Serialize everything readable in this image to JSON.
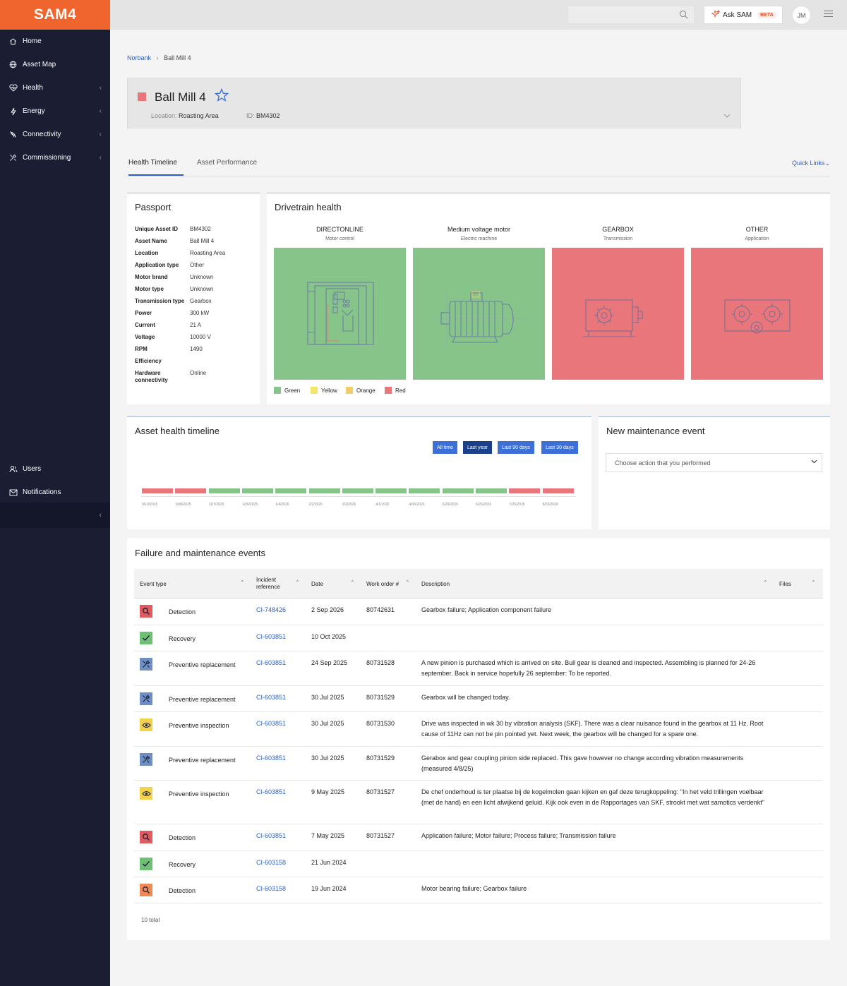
{
  "app": {
    "logo": "SAM4"
  },
  "sidebar": {
    "items": [
      {
        "label": "Home",
        "icon": "home-icon"
      },
      {
        "label": "Asset Map",
        "icon": "globe-icon"
      },
      {
        "label": "Health",
        "icon": "heart-icon"
      },
      {
        "label": "Energy",
        "icon": "bolt-icon"
      },
      {
        "label": "Connectivity",
        "icon": "connectivity-icon"
      },
      {
        "label": "Commissioning",
        "icon": "tools-icon"
      }
    ],
    "bottom_items": [
      {
        "label": "Users",
        "icon": "users-icon"
      },
      {
        "label": "Notifications",
        "icon": "mail-icon"
      }
    ]
  },
  "topbar": {
    "search_placeholder": "",
    "ask_label": "Ask SAM",
    "beta": "BETA",
    "avatar_initials": "JM"
  },
  "breadcrumb": {
    "root": "Norbank",
    "separator": "›",
    "current": "Ball Mill 4"
  },
  "asset": {
    "title": "Ball Mill 4",
    "location_label": "Location:",
    "location": "Roasting Area",
    "id_label": "ID:",
    "id": "BM4302",
    "status_color": "#e8767a"
  },
  "tabs": {
    "health": "Health Timeline",
    "performance": "Asset Performance",
    "quick_links": "Quick Links⌄"
  },
  "passport": {
    "title": "Passport",
    "rows": [
      {
        "k": "Unique Asset ID",
        "v": "BM4302"
      },
      {
        "k": "Asset Name",
        "v": "Ball Mill 4"
      },
      {
        "k": "Location",
        "v": "Roasting Area"
      },
      {
        "k": "Application type",
        "v": "Other"
      },
      {
        "k": "Motor brand",
        "v": "Unknown"
      },
      {
        "k": "Motor type",
        "v": "Unknown"
      },
      {
        "k": "Transmission type",
        "v": "Gearbox"
      },
      {
        "k": "Power",
        "v": "300 kW"
      },
      {
        "k": "Current",
        "v": "21 A"
      },
      {
        "k": "Voltage",
        "v": "10000 V"
      },
      {
        "k": "RPM",
        "v": "1490"
      },
      {
        "k": "Efficiency",
        "v": ""
      },
      {
        "k": "Hardware connectivity",
        "v": "Online"
      }
    ]
  },
  "drivetrain": {
    "title": "Drivetrain health",
    "components": [
      {
        "name": "DIRECTONLINE",
        "sub": "Motor control",
        "status": "Green"
      },
      {
        "name": "Medium voltage motor",
        "sub": "Electric machine",
        "status": "Green"
      },
      {
        "name": "GEARBOX",
        "sub": "Transmission",
        "status": "Red"
      },
      {
        "name": "OTHER",
        "sub": "Application",
        "status": "Red"
      }
    ],
    "legend": [
      {
        "label": "Green",
        "color": "#86c48a"
      },
      {
        "label": "Yellow",
        "color": "#f2e76b"
      },
      {
        "label": "Orange",
        "color": "#f3cc6b"
      },
      {
        "label": "Red",
        "color": "#e8767a"
      }
    ]
  },
  "timeline": {
    "title": "Asset health timeline",
    "ranges": [
      "All time",
      "Last year",
      "Last 90 days",
      "Last 30 days"
    ],
    "active_range": "Last year",
    "segments": [
      "Red",
      "Red",
      "Green",
      "Green",
      "Green",
      "Green",
      "Green",
      "Green",
      "Green",
      "Green",
      "Green",
      "Red",
      "Red"
    ],
    "dates": [
      "9/10/2025",
      "10/8/2025",
      "11/7/2025",
      "12/6/2025",
      "1/4/2026",
      "2/2/2026",
      "3/3/2026",
      "4/1/2026",
      "4/30/2026",
      "5/29/2026",
      "6/26/2026",
      "7/25/2026",
      "8/23/2026"
    ]
  },
  "new_maintenance": {
    "title": "New maintenance event",
    "select_placeholder": "Choose action that you performed"
  },
  "events": {
    "title": "Failure and maintenance events",
    "columns": {
      "type": "Event type",
      "incident_1": "Incident",
      "incident_2": "reference",
      "date": "Date",
      "wo": "Work order #",
      "desc": "Description",
      "files": "Files"
    },
    "rows": [
      {
        "type": "Detection",
        "kind": "detection-red",
        "ref": "CI-748426",
        "date": "2 Sep 2026",
        "wo": "80742631",
        "desc": "Gearbox failure; Application component failure"
      },
      {
        "type": "Recovery",
        "kind": "recovery",
        "ref": "CI-603851",
        "date": "10 Oct 2025",
        "wo": "",
        "desc": ""
      },
      {
        "type": "Preventive replacement",
        "kind": "replacement",
        "ref": "CI-603851",
        "date": "24 Sep 2025",
        "wo": "80731528",
        "desc": "A new pinion is purchased which is arrived on site. Bull gear is cleaned and inspected. Assembling is planned for 24-26 september. Back in service hopefully 26 september: To be reported."
      },
      {
        "type": "Preventive replacement",
        "kind": "replacement",
        "ref": "CI-603851",
        "date": "30 Jul 2025",
        "wo": "80731529",
        "desc": "Gearbox will be changed today."
      },
      {
        "type": "Preventive inspection",
        "kind": "inspection",
        "ref": "CI-603851",
        "date": "30 Jul 2025",
        "wo": "80731530",
        "desc": "Drive was inspected in wk 30 by vibration analysis (SKF). There was a clear nuisance found in the gearbox at 11 Hz. Root cause of 11Hz can not be pin pointed yet. Next week, the gearbox will be changed for a spare one."
      },
      {
        "type": "Preventive replacement",
        "kind": "replacement",
        "ref": "CI-603851",
        "date": "30 Jul 2025",
        "wo": "80731529",
        "desc": "Gerabox and gear coupling pinion side replaced. This gave however no change according vibration measurements (measured 4/8/25)"
      },
      {
        "type": "Preventive inspection",
        "kind": "inspection",
        "ref": "CI-603851",
        "date": "9 May 2025",
        "wo": "80731527",
        "desc": "De chef onderhoud is ter plaatse bij de kogelmolen gaan kijken en gaf deze terugkoppeling: \"In het veld trillingen voelbaar (met de hand) en een licht afwijkend geluid. Kijk ook even in de Rapportages van SKF, strookt met wat samotics verdenkt\""
      },
      {
        "type": "Detection",
        "kind": "detection-red",
        "ref": "CI-603851",
        "date": "7 May 2025",
        "wo": "80731527",
        "desc": "Application failure; Motor failure; Process failure; Transmission failure"
      },
      {
        "type": "Recovery",
        "kind": "recovery",
        "ref": "CI-603158",
        "date": "21 Jun 2024",
        "wo": "",
        "desc": ""
      },
      {
        "type": "Detection",
        "kind": "detection-orange",
        "ref": "CI-603158",
        "date": "19 Jun 2024",
        "wo": "",
        "desc": "Motor bearing failure; Gearbox failure"
      }
    ],
    "total": "10 total"
  }
}
